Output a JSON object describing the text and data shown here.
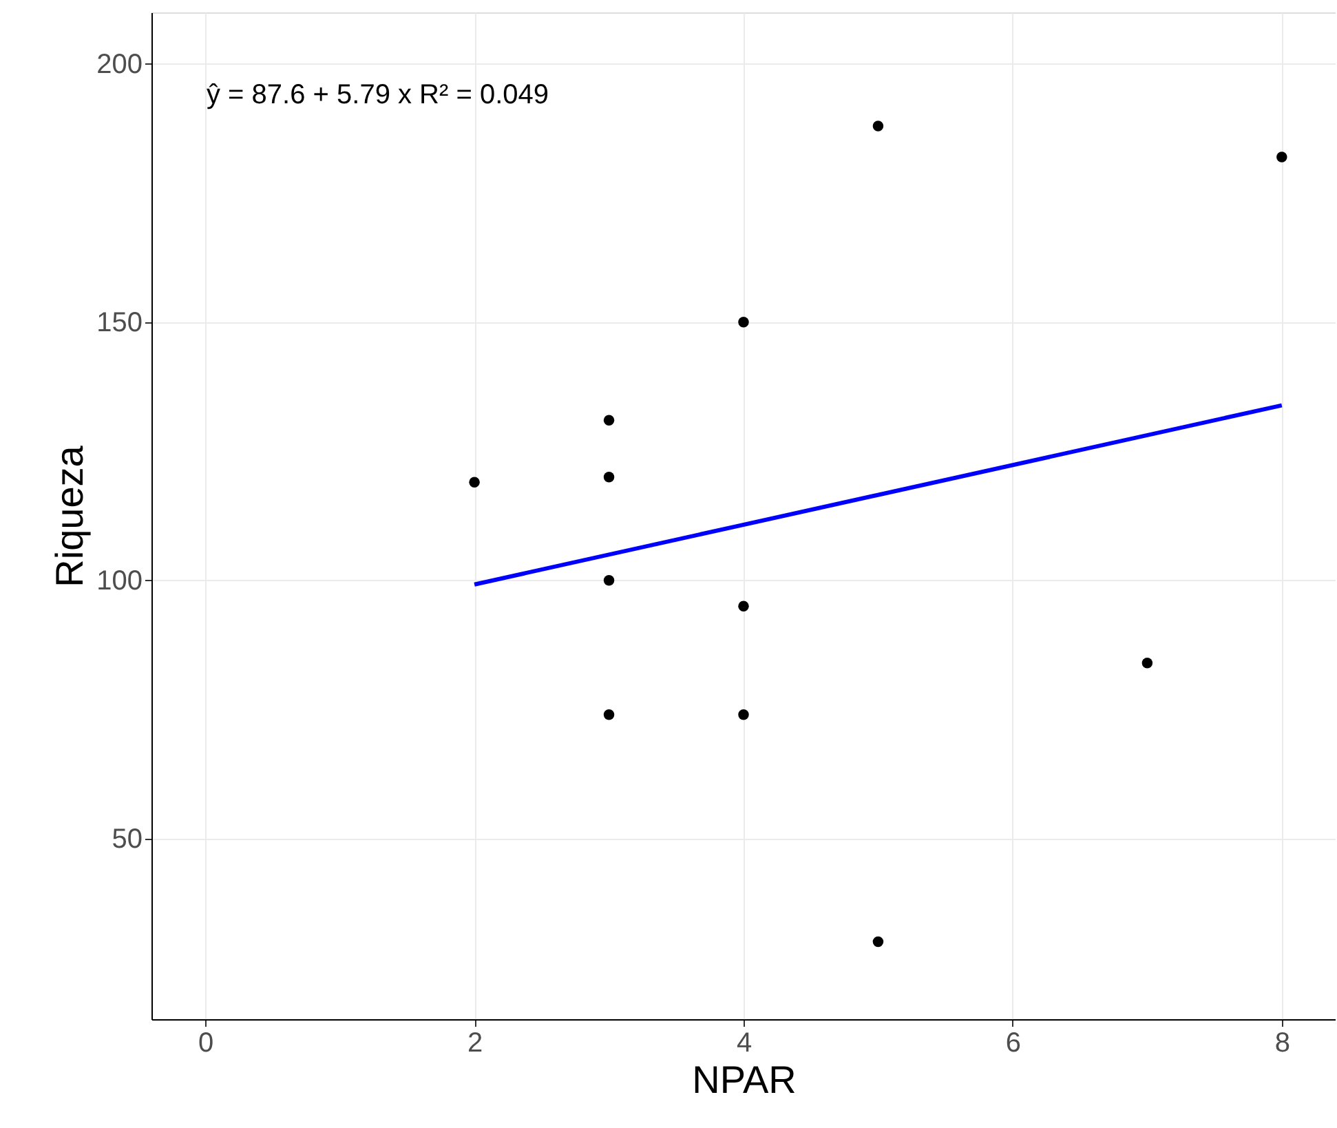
{
  "chart_data": {
    "type": "scatter",
    "xlabel": "NPAR",
    "ylabel": "Riqueza",
    "xlim": [
      -0.4,
      8.4
    ],
    "ylim": [
      15,
      210
    ],
    "xticks": [
      0,
      2,
      4,
      6,
      8
    ],
    "yticks": [
      50,
      100,
      150,
      200
    ],
    "grid": true,
    "annotations": [
      "ŷ = 87.6 + 5.79 x   R² = 0.049"
    ],
    "series": [
      {
        "color": "#000000",
        "marker": "circle",
        "x": [
          2,
          3,
          3,
          3,
          3,
          4,
          4,
          4,
          5,
          5,
          7,
          8
        ],
        "values": [
          119,
          131,
          120,
          100,
          74,
          150,
          95,
          74,
          188,
          30,
          84,
          182
        ]
      },
      {
        "type": "line",
        "color": "#0000ff",
        "line_style": "solid",
        "marker": "none",
        "x": [
          2,
          8
        ],
        "values": [
          99.2,
          133.9
        ]
      }
    ]
  }
}
